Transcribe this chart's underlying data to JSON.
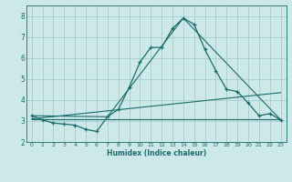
{
  "xlabel": "Humidex (Indice chaleur)",
  "background_color": "#cde8e8",
  "grid_color": "#aacccc",
  "line_color": "#1a6b6b",
  "xlim": [
    -0.5,
    23.5
  ],
  "ylim": [
    2.0,
    8.5
  ],
  "xticks": [
    0,
    1,
    2,
    3,
    4,
    5,
    6,
    7,
    8,
    9,
    10,
    11,
    12,
    13,
    14,
    15,
    16,
    17,
    18,
    19,
    20,
    21,
    22,
    23
  ],
  "yticks": [
    2,
    3,
    4,
    5,
    6,
    7,
    8
  ],
  "curve1_x": [
    0,
    1,
    2,
    3,
    4,
    5,
    6,
    7,
    8,
    9,
    10,
    11,
    12,
    13,
    14,
    15,
    16,
    17,
    18,
    19,
    20,
    21,
    22,
    23
  ],
  "curve1_y": [
    3.25,
    3.05,
    2.9,
    2.85,
    2.8,
    2.6,
    2.5,
    3.2,
    3.55,
    4.6,
    5.8,
    6.5,
    6.5,
    7.4,
    7.9,
    7.6,
    6.4,
    5.4,
    4.5,
    4.4,
    3.85,
    3.25,
    3.35,
    3.05
  ],
  "curve2_x": [
    0,
    7,
    14,
    23
  ],
  "curve2_y": [
    3.25,
    3.2,
    7.9,
    3.05
  ],
  "curve3_x": [
    0,
    23
  ],
  "curve3_y": [
    3.1,
    3.1
  ],
  "curve4_x": [
    0,
    23
  ],
  "curve4_y": [
    3.1,
    4.35
  ]
}
